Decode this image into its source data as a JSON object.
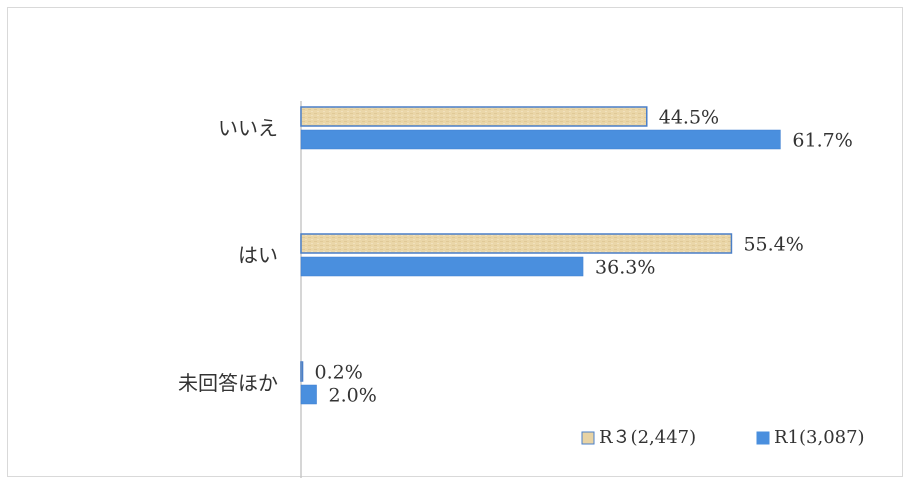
{
  "chart_data": {
    "type": "bar",
    "orientation": "horizontal",
    "categories": [
      "いいえ",
      "はい",
      "未回答ほか"
    ],
    "series": [
      {
        "name": "R３(2,447)",
        "values": [
          44.5,
          55.4,
          0.2
        ],
        "labels": [
          "44.5%",
          "55.4%",
          "0.2%"
        ],
        "color": "#e8d3a4"
      },
      {
        "name": "R1(3,087)",
        "values": [
          61.7,
          36.3,
          2.0
        ],
        "labels": [
          "61.7%",
          "36.3%",
          "2.0%"
        ],
        "color": "#4a8fde"
      }
    ],
    "xlim": [
      0,
      70
    ],
    "grid": false,
    "legend": "bottom-right"
  }
}
